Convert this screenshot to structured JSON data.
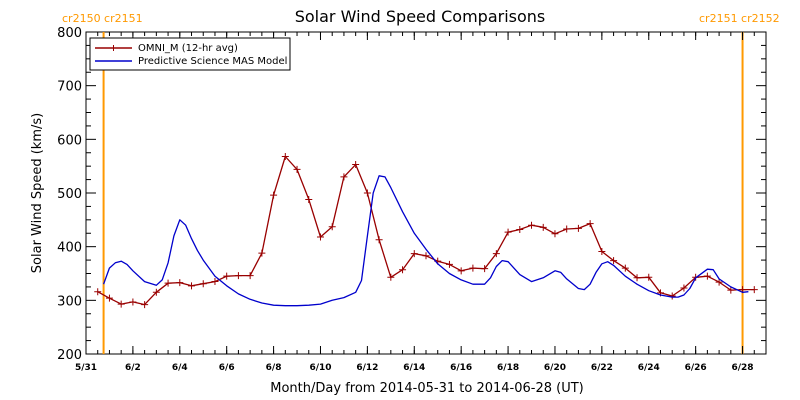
{
  "chart_data": {
    "type": "line",
    "title": "Solar Wind Speed Comparisons",
    "xlabel": "Month/Day from 2014-05-31 to 2014-06-28 (UT)",
    "ylabel": "Solar Wind Speed (km/s)",
    "xlim": [
      "2014-05-31T00:00",
      "2014-06-29T00:00"
    ],
    "ylim": [
      200,
      800
    ],
    "yticks": [
      200,
      300,
      400,
      500,
      600,
      700,
      800
    ],
    "xticks": [
      {
        "date": "2014-05-31",
        "label": "5/31"
      },
      {
        "date": "2014-06-02",
        "label": "6/2"
      },
      {
        "date": "2014-06-04",
        "label": "6/4"
      },
      {
        "date": "2014-06-06",
        "label": "6/6"
      },
      {
        "date": "2014-06-08",
        "label": "6/8"
      },
      {
        "date": "2014-06-10",
        "label": "6/10"
      },
      {
        "date": "2014-06-12",
        "label": "6/12"
      },
      {
        "date": "2014-06-14",
        "label": "6/14"
      },
      {
        "date": "2014-06-16",
        "label": "6/16"
      },
      {
        "date": "2014-06-18",
        "label": "6/18"
      },
      {
        "date": "2014-06-20",
        "label": "6/20"
      },
      {
        "date": "2014-06-22",
        "label": "6/22"
      },
      {
        "date": "2014-06-24",
        "label": "6/24"
      },
      {
        "date": "2014-06-26",
        "label": "6/26"
      },
      {
        "date": "2014-06-28",
        "label": "6/28"
      }
    ],
    "legend_position": "top-left",
    "carrington_markers": [
      {
        "date": "2014-05-31T18:00",
        "label": "cr2150 cr2151",
        "color": "#ff9900",
        "label_side": "left"
      },
      {
        "date": "2014-06-28T00:00",
        "label": "cr2151 cr2152",
        "color": "#ff9900",
        "label_side": "right"
      }
    ],
    "series": [
      {
        "name": "OMNI_M (12-hr avg)",
        "color": "#990000",
        "marker": "plus",
        "x": [
          "2014-05-31T12:00",
          "2014-06-01T00:00",
          "2014-06-01T12:00",
          "2014-06-02T00:00",
          "2014-06-02T12:00",
          "2014-06-03T00:00",
          "2014-06-03T12:00",
          "2014-06-04T00:00",
          "2014-06-04T12:00",
          "2014-06-05T00:00",
          "2014-06-05T12:00",
          "2014-06-06T00:00",
          "2014-06-06T12:00",
          "2014-06-07T00:00",
          "2014-06-07T12:00",
          "2014-06-08T00:00",
          "2014-06-08T12:00",
          "2014-06-09T00:00",
          "2014-06-09T12:00",
          "2014-06-10T00:00",
          "2014-06-10T12:00",
          "2014-06-11T00:00",
          "2014-06-11T12:00",
          "2014-06-12T00:00",
          "2014-06-12T12:00",
          "2014-06-13T00:00",
          "2014-06-13T12:00",
          "2014-06-14T00:00",
          "2014-06-14T12:00",
          "2014-06-15T00:00",
          "2014-06-15T12:00",
          "2014-06-16T00:00",
          "2014-06-16T12:00",
          "2014-06-17T00:00",
          "2014-06-17T12:00",
          "2014-06-18T00:00",
          "2014-06-18T12:00",
          "2014-06-19T00:00",
          "2014-06-19T12:00",
          "2014-06-20T00:00",
          "2014-06-20T12:00",
          "2014-06-21T00:00",
          "2014-06-21T12:00",
          "2014-06-22T00:00",
          "2014-06-22T12:00",
          "2014-06-23T00:00",
          "2014-06-23T12:00",
          "2014-06-24T00:00",
          "2014-06-24T12:00",
          "2014-06-25T00:00",
          "2014-06-25T12:00",
          "2014-06-26T00:00",
          "2014-06-26T12:00",
          "2014-06-27T00:00",
          "2014-06-27T12:00",
          "2014-06-28T00:00",
          "2014-06-28T12:00"
        ],
        "y": [
          316,
          304,
          293,
          297,
          292,
          315,
          332,
          333,
          327,
          331,
          335,
          345,
          346,
          346,
          388,
          496,
          568,
          544,
          488,
          418,
          437,
          530,
          553,
          500,
          413,
          343,
          357,
          387,
          383,
          373,
          367,
          355,
          360,
          359,
          387,
          427,
          432,
          440,
          436,
          424,
          433,
          434,
          443,
          391,
          374,
          360,
          342,
          343,
          314,
          308,
          323,
          343,
          345,
          334,
          319,
          320,
          320
        ]
      },
      {
        "name": "Predictive Science MAS Model",
        "color": "#0000cc",
        "marker": "none",
        "x": [
          "2014-05-31T18:00",
          "2014-06-01T00:00",
          "2014-06-01T06:00",
          "2014-06-01T12:00",
          "2014-06-01T18:00",
          "2014-06-02T00:00",
          "2014-06-02T12:00",
          "2014-06-03T00:00",
          "2014-06-03T06:00",
          "2014-06-03T12:00",
          "2014-06-03T18:00",
          "2014-06-04T00:00",
          "2014-06-04T06:00",
          "2014-06-04T12:00",
          "2014-06-04T18:00",
          "2014-06-05T00:00",
          "2014-06-05T12:00",
          "2014-06-06T00:00",
          "2014-06-06T12:00",
          "2014-06-07T00:00",
          "2014-06-07T12:00",
          "2014-06-08T00:00",
          "2014-06-08T12:00",
          "2014-06-09T00:00",
          "2014-06-09T12:00",
          "2014-06-10T00:00",
          "2014-06-10T12:00",
          "2014-06-11T00:00",
          "2014-06-11T12:00",
          "2014-06-11T18:00",
          "2014-06-12T00:00",
          "2014-06-12T06:00",
          "2014-06-12T12:00",
          "2014-06-12T18:00",
          "2014-06-13T00:00",
          "2014-06-13T12:00",
          "2014-06-14T00:00",
          "2014-06-14T12:00",
          "2014-06-15T00:00",
          "2014-06-15T12:00",
          "2014-06-16T00:00",
          "2014-06-16T12:00",
          "2014-06-17T00:00",
          "2014-06-17T06:00",
          "2014-06-17T12:00",
          "2014-06-17T18:00",
          "2014-06-18T00:00",
          "2014-06-18T06:00",
          "2014-06-18T12:00",
          "2014-06-19T00:00",
          "2014-06-19T12:00",
          "2014-06-20T00:00",
          "2014-06-20T06:00",
          "2014-06-20T12:00",
          "2014-06-21T00:00",
          "2014-06-21T06:00",
          "2014-06-21T12:00",
          "2014-06-21T18:00",
          "2014-06-22T00:00",
          "2014-06-22T06:00",
          "2014-06-22T12:00",
          "2014-06-23T00:00",
          "2014-06-23T12:00",
          "2014-06-24T00:00",
          "2014-06-24T12:00",
          "2014-06-25T00:00",
          "2014-06-25T06:00",
          "2014-06-25T12:00",
          "2014-06-25T18:00",
          "2014-06-26T00:00",
          "2014-06-26T12:00",
          "2014-06-26T18:00",
          "2014-06-27T00:00",
          "2014-06-27T12:00",
          "2014-06-28T00:00",
          "2014-06-28T06:00"
        ],
        "y": [
          330,
          360,
          370,
          373,
          367,
          355,
          335,
          328,
          338,
          370,
          420,
          450,
          440,
          415,
          393,
          375,
          345,
          327,
          312,
          302,
          295,
          291,
          290,
          290,
          291,
          293,
          300,
          305,
          315,
          337,
          420,
          500,
          532,
          530,
          510,
          465,
          425,
          395,
          368,
          350,
          338,
          330,
          330,
          342,
          363,
          374,
          372,
          360,
          348,
          335,
          342,
          355,
          352,
          340,
          322,
          320,
          330,
          352,
          368,
          372,
          365,
          345,
          330,
          318,
          310,
          306,
          306,
          310,
          322,
          342,
          358,
          357,
          340,
          325,
          315,
          316
        ]
      }
    ]
  }
}
